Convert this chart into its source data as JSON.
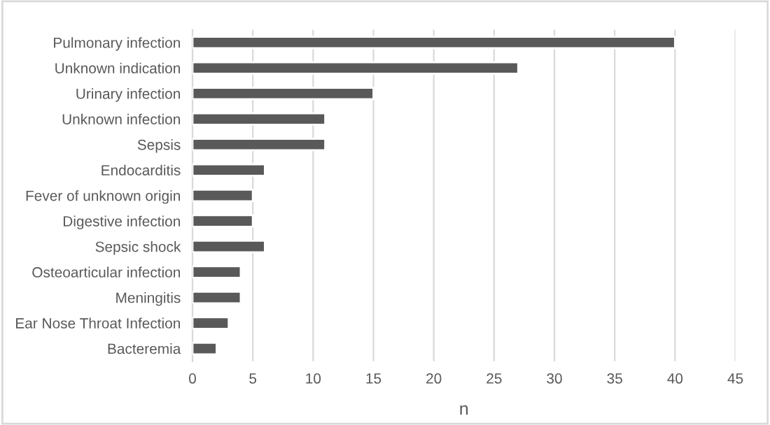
{
  "chart_data": {
    "type": "bar",
    "orientation": "horizontal",
    "xlabel": "n",
    "categories": [
      "Pulmonary infection",
      "Unknown indication",
      "Urinary infection",
      "Unknown infection",
      "Sepsis",
      "Endocarditis",
      "Fever of unknown origin",
      "Digestive infection",
      "Sepsic shock",
      "Osteoarticular infection",
      "Meningitis",
      "Ear Nose Throat Infection",
      "Bacteremia"
    ],
    "values": [
      40,
      27,
      15,
      11,
      11,
      6,
      5,
      5,
      6,
      4,
      4,
      3,
      2
    ],
    "color": "#595959",
    "xlim": [
      0,
      45
    ],
    "xticks": [
      0,
      5,
      10,
      15,
      20,
      25,
      30,
      35,
      40,
      45
    ],
    "grid": "x",
    "legend": false
  }
}
